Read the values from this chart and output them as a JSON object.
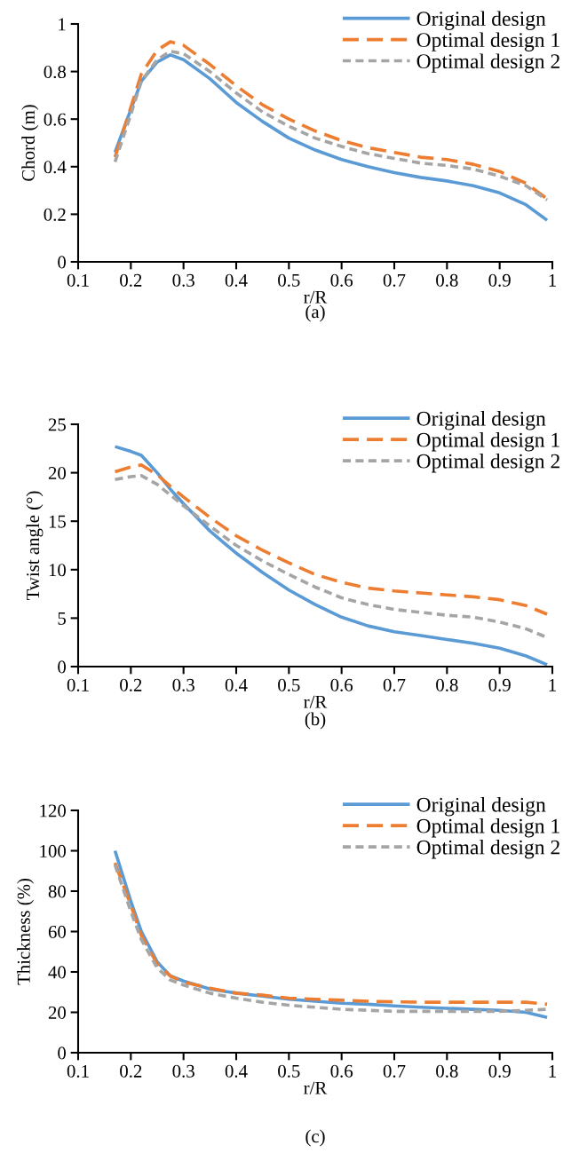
{
  "chart_data": [
    {
      "type": "line",
      "xlabel": "r/R",
      "ylabel": "Chord (m)",
      "annotations": [
        "(a)"
      ],
      "xlim": [
        0.1,
        1
      ],
      "xticks": [
        0.1,
        0.2,
        0.3,
        0.4,
        0.5,
        0.6,
        0.7,
        0.8,
        0.9,
        1
      ],
      "ylim": [
        0,
        1
      ],
      "yticks": [
        0,
        0.2,
        0.4,
        0.6,
        0.8,
        1
      ],
      "grid": false,
      "legend": "top right",
      "x": [
        0.17,
        0.2,
        0.22,
        0.25,
        0.275,
        0.3,
        0.35,
        0.4,
        0.45,
        0.5,
        0.55,
        0.6,
        0.65,
        0.7,
        0.75,
        0.8,
        0.85,
        0.9,
        0.95,
        0.99
      ],
      "series": [
        {
          "name": "Original design",
          "color": "#5b9bd5",
          "line_style": "solid",
          "values": [
            0.46,
            0.64,
            0.76,
            0.84,
            0.87,
            0.85,
            0.77,
            0.67,
            0.59,
            0.52,
            0.47,
            0.43,
            0.4,
            0.375,
            0.355,
            0.34,
            0.32,
            0.29,
            0.24,
            0.175
          ]
        },
        {
          "name": "Optimal design 1",
          "color": "#ed7d31",
          "line_style": "dashed",
          "values": [
            0.44,
            0.65,
            0.79,
            0.89,
            0.925,
            0.91,
            0.83,
            0.74,
            0.66,
            0.6,
            0.55,
            0.51,
            0.48,
            0.46,
            0.44,
            0.43,
            0.41,
            0.38,
            0.33,
            0.265
          ]
        },
        {
          "name": "Optimal design 2",
          "color": "#a5a5a5",
          "line_style": "dotted",
          "values": [
            0.42,
            0.62,
            0.76,
            0.85,
            0.885,
            0.875,
            0.8,
            0.71,
            0.63,
            0.57,
            0.52,
            0.485,
            0.455,
            0.435,
            0.415,
            0.405,
            0.39,
            0.36,
            0.32,
            0.26
          ]
        }
      ]
    },
    {
      "type": "line",
      "xlabel": "r/R",
      "ylabel": "Twist angle (°)",
      "annotations": [
        "(b)"
      ],
      "xlim": [
        0.1,
        1
      ],
      "xticks": [
        0.1,
        0.2,
        0.3,
        0.4,
        0.5,
        0.6,
        0.7,
        0.8,
        0.9,
        1
      ],
      "ylim": [
        0,
        25
      ],
      "yticks": [
        0,
        5,
        10,
        15,
        20,
        25
      ],
      "grid": false,
      "legend": "top right",
      "x": [
        0.17,
        0.2,
        0.22,
        0.25,
        0.275,
        0.3,
        0.35,
        0.4,
        0.45,
        0.5,
        0.55,
        0.6,
        0.65,
        0.7,
        0.75,
        0.8,
        0.85,
        0.9,
        0.95,
        0.99
      ],
      "series": [
        {
          "name": "Original design",
          "color": "#5b9bd5",
          "line_style": "solid",
          "values": [
            22.7,
            22.2,
            21.8,
            20,
            18.3,
            16.8,
            14,
            11.7,
            9.7,
            7.9,
            6.4,
            5.1,
            4.2,
            3.6,
            3.2,
            2.8,
            2.4,
            1.9,
            1.1,
            0.2
          ]
        },
        {
          "name": "Optimal design 1",
          "color": "#ed7d31",
          "line_style": "dashed",
          "values": [
            20.1,
            20.6,
            20.8,
            19.8,
            18.6,
            17.5,
            15.4,
            13.5,
            12,
            10.7,
            9.5,
            8.7,
            8.1,
            7.8,
            7.6,
            7.4,
            7.2,
            6.9,
            6.3,
            5.4
          ]
        },
        {
          "name": "Optimal design 2",
          "color": "#a5a5a5",
          "line_style": "dotted",
          "values": [
            19.3,
            19.6,
            19.7,
            18.8,
            17.7,
            16.6,
            14.5,
            12.5,
            10.9,
            9.5,
            8.2,
            7.1,
            6.4,
            5.9,
            5.6,
            5.3,
            5.1,
            4.6,
            3.9,
            3.0
          ]
        }
      ]
    },
    {
      "type": "line",
      "xlabel": "r/R",
      "ylabel": "Thickness (%)",
      "annotations": [
        "(c)"
      ],
      "xlim": [
        0.1,
        1
      ],
      "xticks": [
        0.1,
        0.2,
        0.3,
        0.4,
        0.5,
        0.6,
        0.7,
        0.8,
        0.9,
        1
      ],
      "ylim": [
        0,
        120
      ],
      "yticks": [
        0,
        20,
        40,
        60,
        80,
        100,
        120
      ],
      "grid": false,
      "legend": "top right",
      "x": [
        0.17,
        0.2,
        0.22,
        0.25,
        0.275,
        0.3,
        0.35,
        0.4,
        0.45,
        0.5,
        0.55,
        0.6,
        0.65,
        0.7,
        0.75,
        0.8,
        0.85,
        0.9,
        0.95,
        0.99
      ],
      "series": [
        {
          "name": "Original design",
          "color": "#5b9bd5",
          "line_style": "solid",
          "values": [
            100,
            75,
            60,
            45,
            38,
            35.5,
            31.5,
            29.5,
            28,
            26.5,
            25.5,
            24.5,
            24,
            23.2,
            22.5,
            22,
            21.5,
            21,
            20,
            17.5
          ]
        },
        {
          "name": "Optimal design 1",
          "color": "#ed7d31",
          "line_style": "dashed",
          "values": [
            94,
            73,
            58,
            44,
            38,
            35,
            32,
            29.5,
            28.5,
            27,
            26.5,
            26,
            25.5,
            25.2,
            25,
            25,
            25,
            25,
            25,
            24
          ]
        },
        {
          "name": "Optimal design 2",
          "color": "#a5a5a5",
          "line_style": "dotted",
          "values": [
            93,
            70,
            56,
            42,
            36,
            33.5,
            29.5,
            27,
            25,
            23.5,
            22.5,
            21.5,
            21,
            20.5,
            20.5,
            20.5,
            20.5,
            20.5,
            21,
            21.5
          ]
        }
      ]
    }
  ]
}
